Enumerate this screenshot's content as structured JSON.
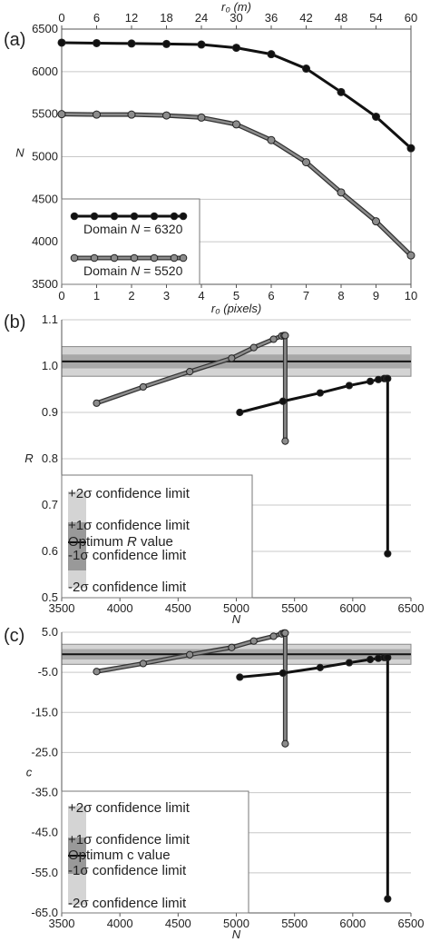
{
  "chart_data": [
    {
      "panel": "(a)",
      "type": "line",
      "xlabel": "r₀ (pixels)",
      "x2label": "r₀ (m)",
      "ylabel": "N",
      "xlim": [
        0,
        10
      ],
      "ylim": [
        3500,
        6500
      ],
      "x_ticks": [
        0,
        1,
        2,
        3,
        4,
        5,
        6,
        7,
        8,
        9,
        10
      ],
      "x2_ticks": [
        0,
        6,
        12,
        18,
        24,
        30,
        36,
        42,
        48,
        54,
        60
      ],
      "y_ticks": [
        3500,
        4000,
        4500,
        5000,
        5500,
        6000,
        6500
      ],
      "grid": "horizontal",
      "legend_position": "bottom-left",
      "series": [
        {
          "name": "Domain N = 6320",
          "color": "#111111",
          "x": [
            0,
            1,
            2,
            3,
            4,
            5,
            6,
            7,
            8,
            9,
            10
          ],
          "y": [
            6340,
            6335,
            6330,
            6325,
            6318,
            6280,
            6205,
            6035,
            5760,
            5470,
            5100
          ]
        },
        {
          "name": "Domain N = 5520",
          "color": "#8c8c8c",
          "x": [
            0,
            1,
            2,
            3,
            4,
            5,
            6,
            7,
            8,
            9,
            10
          ],
          "y": [
            5500,
            5495,
            5495,
            5485,
            5460,
            5380,
            5195,
            4935,
            4580,
            4240,
            3840
          ]
        }
      ],
      "legend": {
        "prefix": "Domain ",
        "var": "N",
        "items": [
          " = 6320",
          " = 5520"
        ]
      }
    },
    {
      "panel": "(b)",
      "type": "line",
      "xlabel": "N",
      "ylabel": "R",
      "xlim": [
        3500,
        6500
      ],
      "ylim": [
        0.5,
        1.1
      ],
      "x_ticks": [
        3500,
        4000,
        4500,
        5000,
        5500,
        6000,
        6500
      ],
      "y_ticks": [
        0.5,
        0.6,
        0.7,
        0.8,
        0.9,
        1.0,
        1.1
      ],
      "y_tick_labels": [
        "0.5",
        "0.6",
        "0.7",
        "0.8",
        "0.9",
        "1.0",
        "1.1"
      ],
      "grid": "horizontal",
      "optimum": 1.01,
      "band_1sigma": [
        0.995,
        1.025
      ],
      "band_2sigma": [
        0.978,
        1.042
      ],
      "series": [
        {
          "color": "#8c8c8c",
          "x": [
            3800,
            4200,
            4600,
            4960,
            5150,
            5320,
            5390,
            5410,
            5420,
            5420
          ],
          "y": [
            0.92,
            0.955,
            0.988,
            1.017,
            1.04,
            1.058,
            1.065,
            1.066,
            1.066,
            0.838
          ]
        },
        {
          "color": "#111111",
          "x": [
            5030,
            5400,
            5720,
            5970,
            6150,
            6220,
            6270,
            6290,
            6300,
            6300
          ],
          "y": [
            0.9,
            0.924,
            0.942,
            0.958,
            0.967,
            0.971,
            0.973,
            0.973,
            0.973,
            0.595
          ]
        }
      ],
      "legend": {
        "items": [
          "+2σ confidence limit",
          "+1σ confidence limit",
          "Optimum ",
          " value",
          "-1σ confidence limit",
          "-2σ confidence limit"
        ],
        "var": "R"
      }
    },
    {
      "panel": "(c)",
      "type": "line",
      "xlabel": "N",
      "ylabel": "c",
      "xlim": [
        3500,
        6500
      ],
      "ylim": [
        -65,
        5
      ],
      "x_ticks": [
        3500,
        4000,
        4500,
        5000,
        5500,
        6000,
        6500
      ],
      "y_ticks": [
        -65,
        -55,
        -45,
        -35,
        -25,
        -15,
        -5,
        5
      ],
      "y_tick_labels": [
        "-65.0",
        "-55.0",
        "-45.0",
        "-35.0",
        "-25.0",
        "-15.0",
        "-5.0",
        "5.0"
      ],
      "grid": "horizontal",
      "optimum": -0.5,
      "band_1sigma": [
        -1.8,
        0.8
      ],
      "band_2sigma": [
        -3.0,
        2.0
      ],
      "series": [
        {
          "color": "#8c8c8c",
          "x": [
            3800,
            4200,
            4600,
            4960,
            5150,
            5320,
            5390,
            5410,
            5420,
            5420
          ],
          "y": [
            -4.8,
            -2.8,
            -0.6,
            1.2,
            2.8,
            4.0,
            4.6,
            4.8,
            4.8,
            -22.8
          ]
        },
        {
          "color": "#111111",
          "x": [
            5030,
            5400,
            5720,
            5970,
            6150,
            6220,
            6270,
            6290,
            6300,
            6300
          ],
          "y": [
            -6.2,
            -5.2,
            -3.8,
            -2.6,
            -1.8,
            -1.5,
            -1.3,
            -1.3,
            -1.3,
            -61.5
          ]
        }
      ],
      "legend": {
        "items": [
          "+2σ confidence limit",
          "+1σ confidence limit",
          "Optimum c value",
          "-1σ confidence limit",
          "-2σ confidence limit"
        ]
      }
    }
  ]
}
